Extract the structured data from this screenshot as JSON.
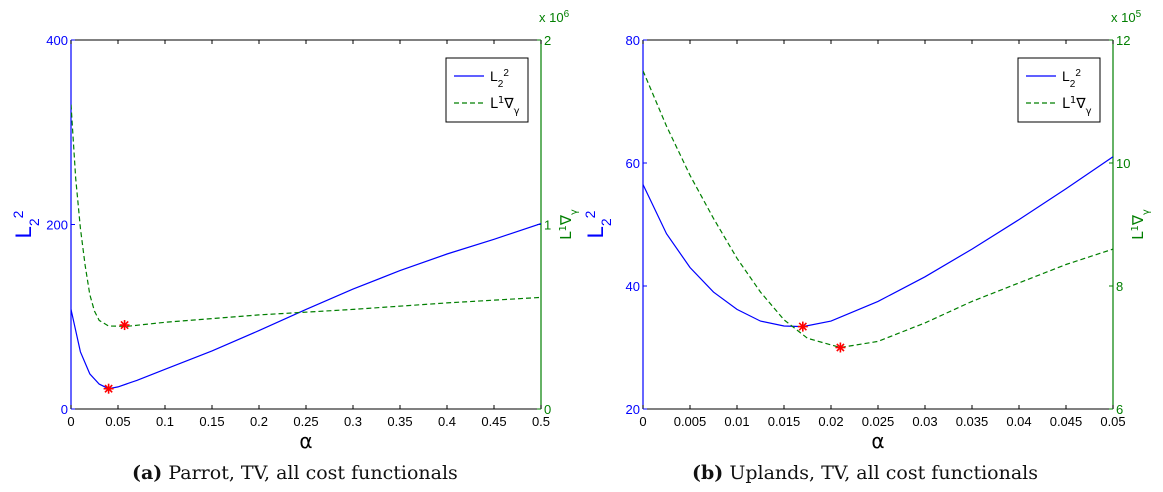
{
  "figure": {
    "captions": [
      {
        "tag": "(a)",
        "text": "Parrot, TV, all cost functionals"
      },
      {
        "tag": "(b)",
        "text": "Uplands, TV, all cost functionals"
      }
    ]
  },
  "colors": {
    "blue": "#0000ff",
    "green": "#007f00",
    "marker": "#ff0000",
    "axis": "#000000"
  },
  "chart_data": [
    {
      "type": "line",
      "title": "",
      "xlabel": "α",
      "ylabel_left": "L₂²",
      "ylabel_right": "L¹∇γ",
      "xlim": [
        0,
        0.5
      ],
      "ylim_left": [
        0,
        400
      ],
      "ylim_right": [
        0,
        2
      ],
      "right_multiplier": "x 10^6",
      "xticks": [
        "0",
        "0.05",
        "0.1",
        "0.15",
        "0.2",
        "0.25",
        "0.3",
        "0.35",
        "0.4",
        "0.45",
        "0.5"
      ],
      "yticks_left": [
        "0",
        "200",
        "400"
      ],
      "yticks_right": [
        "0",
        "1",
        "2"
      ],
      "legend": {
        "placement": "top-right",
        "entries": [
          "L₂²",
          "L¹∇γ"
        ]
      },
      "series": [
        {
          "name": "L₂²",
          "axis": "left",
          "style": "solid",
          "color": "#0000ff",
          "x": [
            0,
            0.01,
            0.02,
            0.03,
            0.04,
            0.05,
            0.07,
            0.1,
            0.15,
            0.2,
            0.25,
            0.3,
            0.35,
            0.4,
            0.45,
            0.5
          ],
          "y": [
            108,
            62,
            38,
            27,
            22,
            24,
            31,
            43,
            63,
            85,
            108,
            130,
            150,
            168,
            184,
            201
          ]
        },
        {
          "name": "L¹∇γ",
          "axis": "right",
          "style": "dashed",
          "color": "#007f00",
          "x": [
            0,
            0.005,
            0.01,
            0.015,
            0.02,
            0.025,
            0.03,
            0.04,
            0.05,
            0.06,
            0.1,
            0.2,
            0.3,
            0.4,
            0.5
          ],
          "y": [
            1.65,
            1.25,
            0.98,
            0.78,
            0.62,
            0.53,
            0.48,
            0.45,
            0.449,
            0.448,
            0.47,
            0.51,
            0.54,
            0.575,
            0.605
          ]
        }
      ],
      "markers": [
        {
          "axis": "left",
          "x": 0.04,
          "y": 22
        },
        {
          "axis": "right",
          "x": 0.057,
          "y": 0.455
        }
      ]
    },
    {
      "type": "line",
      "title": "",
      "xlabel": "α",
      "ylabel_left": "L₂²",
      "ylabel_right": "L¹∇γ",
      "xlim": [
        0,
        0.05
      ],
      "ylim_left": [
        20,
        80
      ],
      "ylim_right": [
        6,
        12
      ],
      "right_multiplier": "x 10^5",
      "xticks": [
        "0",
        "0.005",
        "0.01",
        "0.015",
        "0.02",
        "0.025",
        "0.03",
        "0.035",
        "0.04",
        "0.045",
        "0.05"
      ],
      "yticks_left": [
        "20",
        "40",
        "60",
        "80"
      ],
      "yticks_right": [
        "6",
        "8",
        "10",
        "12"
      ],
      "legend": {
        "placement": "top-right",
        "entries": [
          "L₂²",
          "L¹∇γ"
        ]
      },
      "series": [
        {
          "name": "L₂²",
          "axis": "left",
          "style": "solid",
          "color": "#0000ff",
          "x": [
            0,
            0.0025,
            0.005,
            0.0075,
            0.01,
            0.0125,
            0.015,
            0.017,
            0.02,
            0.025,
            0.03,
            0.035,
            0.04,
            0.045,
            0.05
          ],
          "y": [
            56.5,
            48.5,
            43,
            39,
            36.2,
            34.3,
            33.5,
            33.4,
            34.3,
            37.5,
            41.5,
            46,
            50.8,
            55.8,
            61
          ]
        },
        {
          "name": "L¹∇γ",
          "axis": "right",
          "style": "dashed",
          "color": "#007f00",
          "x": [
            0,
            0.0025,
            0.005,
            0.0075,
            0.01,
            0.0125,
            0.015,
            0.0175,
            0.021,
            0.025,
            0.03,
            0.035,
            0.04,
            0.045,
            0.05
          ],
          "y": [
            11.5,
            10.6,
            9.8,
            9.1,
            8.45,
            7.9,
            7.45,
            7.15,
            7.0,
            7.1,
            7.4,
            7.75,
            8.05,
            8.35,
            8.6
          ]
        }
      ],
      "markers": [
        {
          "axis": "left",
          "x": 0.017,
          "y": 33.4
        },
        {
          "axis": "right",
          "x": 0.021,
          "y": 7.0
        }
      ]
    }
  ]
}
